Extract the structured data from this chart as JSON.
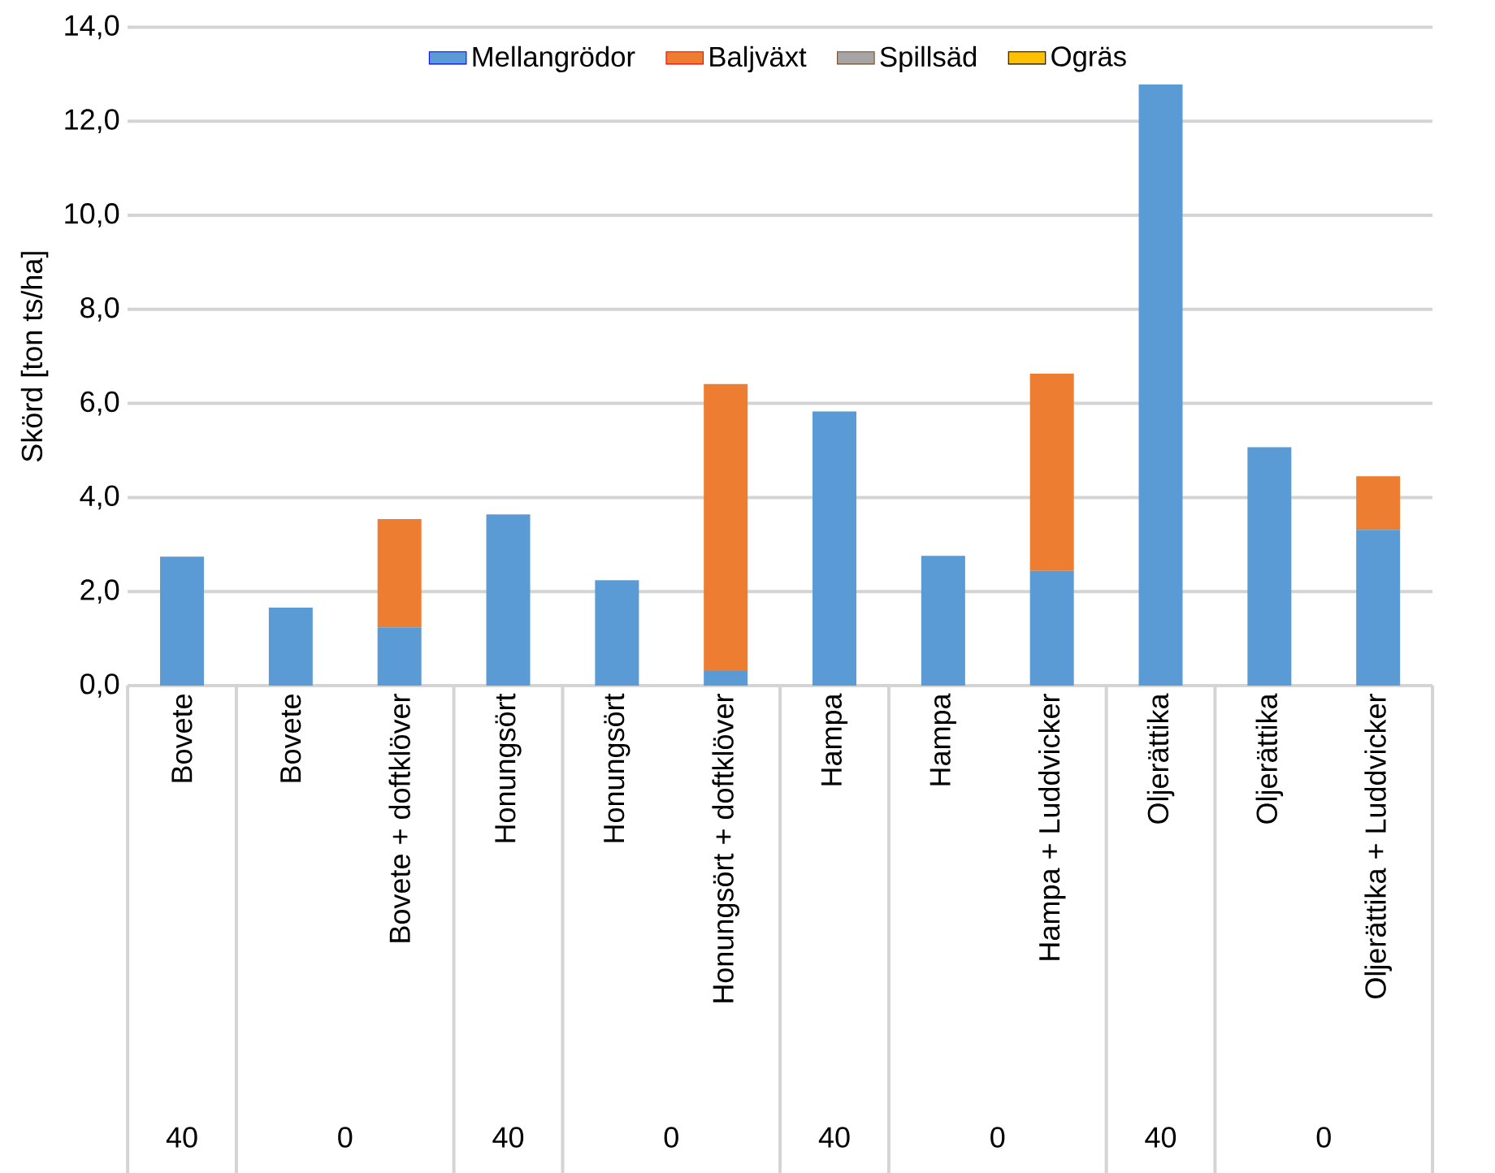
{
  "chart_data": {
    "type": "bar",
    "stacked": true,
    "ylabel": "Skörd [ton ts/ha]",
    "categories": [
      "Bovete",
      "Bovete",
      "Bovete + doftklöver",
      "Honungsört",
      "Honungsört",
      "Honungsört + doftklöver",
      "Hampa",
      "Hampa",
      "Hampa + Luddvicker",
      "Oljerättika",
      "Oljerättika",
      "Oljerättika + Luddvicker"
    ],
    "series": [
      {
        "name": "Mellangrödor",
        "color": "#5b9bd5",
        "values": [
          2.74,
          1.66,
          1.24,
          3.64,
          2.24,
          0.31,
          5.83,
          2.76,
          2.44,
          12.78,
          5.07,
          3.31
        ]
      },
      {
        "name": "Baljväxt",
        "color": "#ed7d31",
        "values": [
          null,
          null,
          2.3,
          null,
          null,
          6.1,
          null,
          null,
          4.19,
          null,
          null,
          1.14
        ]
      },
      {
        "name": "Spillsäd",
        "color": "#a5a5a5",
        "values": [
          0,
          0,
          0,
          0,
          0,
          0,
          0,
          0,
          0,
          0,
          0,
          0
        ]
      },
      {
        "name": "Ogräs",
        "color": "#ffc000",
        "values": [
          0,
          0,
          0,
          0,
          0,
          0,
          0,
          0,
          0,
          0,
          0,
          0
        ]
      }
    ],
    "ylim": [
      0,
      14
    ],
    "yticks": [
      {
        "value": 0,
        "label": "0,0"
      },
      {
        "value": 2,
        "label": "2,0"
      },
      {
        "value": 4,
        "label": "4,0"
      },
      {
        "value": 6,
        "label": "6,0"
      },
      {
        "value": 8,
        "label": "8,0"
      },
      {
        "value": 10,
        "label": "10,0"
      },
      {
        "value": 12,
        "label": "12,0"
      },
      {
        "value": 14,
        "label": "14,0"
      }
    ],
    "grid": "y",
    "legend": "top",
    "annotations": [
      "40",
      "0",
      "40",
      "0",
      "40",
      "0",
      "40",
      "0"
    ]
  }
}
